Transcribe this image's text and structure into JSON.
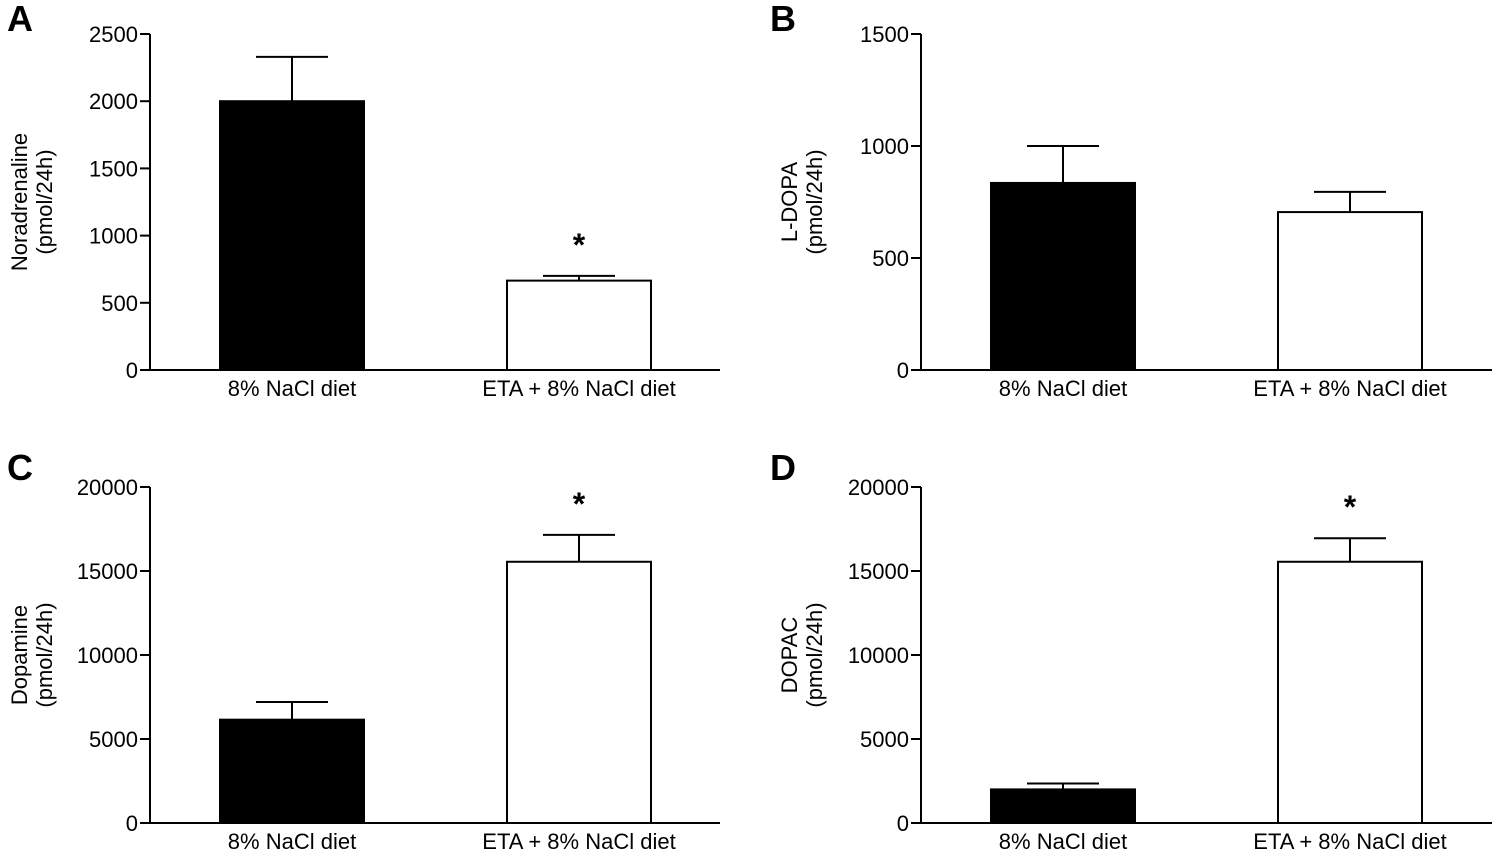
{
  "colors": {
    "filled_bar": "#000000",
    "open_bar": "#ffffff",
    "axis": "#000000"
  },
  "chart_data": [
    {
      "panel": "A",
      "type": "bar",
      "categories": [
        "8% NaCl diet",
        "ETA + 8% NaCl diet"
      ],
      "values": [
        2000,
        665
      ],
      "errors": [
        330,
        35
      ],
      "significance": [
        "",
        "*"
      ],
      "ylabel": [
        "Noradrenaline",
        "(pmol/24h)"
      ],
      "yticks": [
        0,
        500,
        1000,
        1500,
        2000,
        2500
      ],
      "ylim": [
        0,
        2500
      ]
    },
    {
      "panel": "B",
      "type": "bar",
      "categories": [
        "8% NaCl diet",
        "ETA + 8% NaCl diet"
      ],
      "values": [
        835,
        705
      ],
      "errors": [
        165,
        90
      ],
      "significance": [
        "",
        ""
      ],
      "ylabel": [
        "L-DOPA",
        "(pmol/24h)"
      ],
      "yticks": [
        0,
        500,
        1000,
        1500
      ],
      "ylim": [
        0,
        1500
      ]
    },
    {
      "panel": "C",
      "type": "bar",
      "categories": [
        "8% NaCl diet",
        "ETA + 8% NaCl diet"
      ],
      "values": [
        6150,
        15550
      ],
      "errors": [
        1050,
        1600
      ],
      "significance": [
        "",
        "*"
      ],
      "ylabel": [
        "Dopamine",
        "(pmol/24h)"
      ],
      "yticks": [
        0,
        5000,
        10000,
        15000,
        20000
      ],
      "ylim": [
        0,
        20000
      ]
    },
    {
      "panel": "D",
      "type": "bar",
      "categories": [
        "8% NaCl diet",
        "ETA + 8% NaCl diet"
      ],
      "values": [
        2000,
        15550
      ],
      "errors": [
        350,
        1400
      ],
      "significance": [
        "",
        "*"
      ],
      "ylabel": [
        "DOPAC",
        "(pmol/24h)"
      ],
      "yticks": [
        0,
        5000,
        10000,
        15000,
        20000
      ],
      "ylim": [
        0,
        20000
      ]
    }
  ]
}
